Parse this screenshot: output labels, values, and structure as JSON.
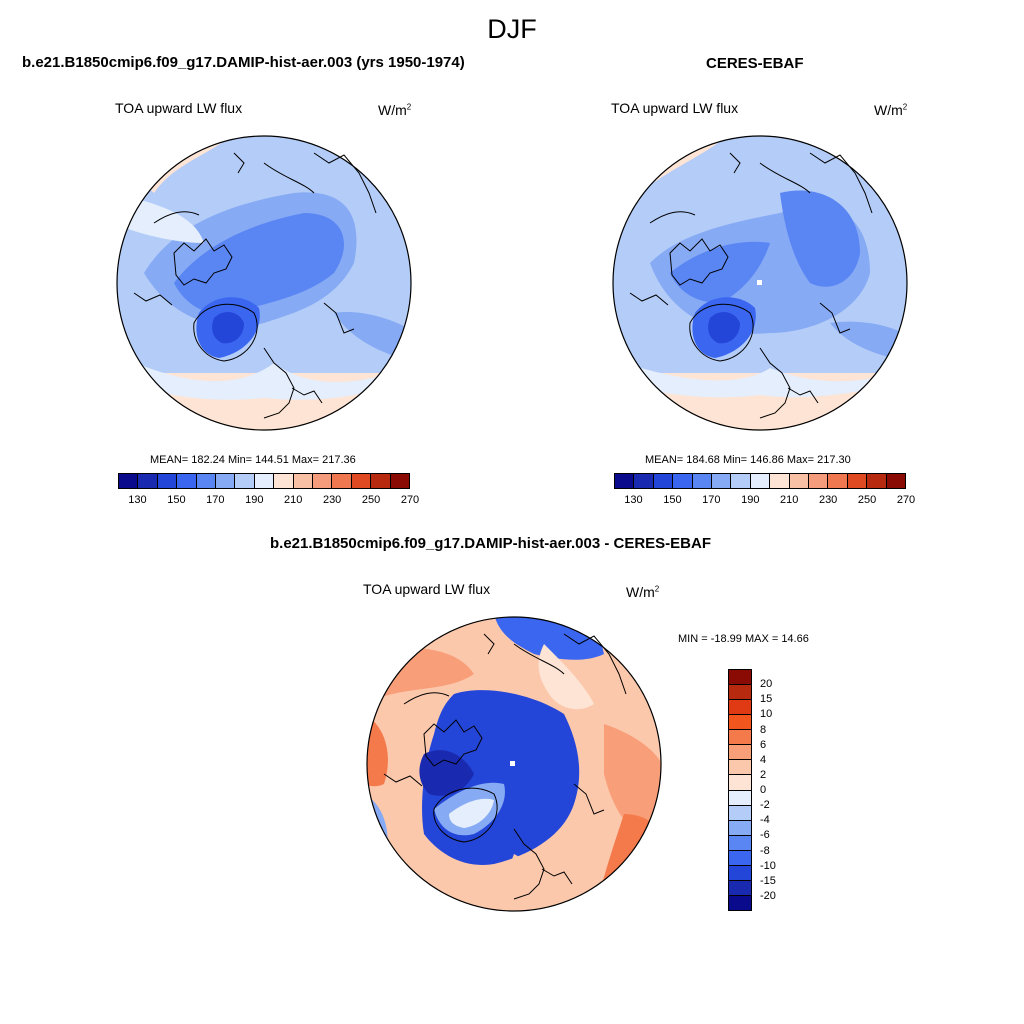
{
  "figure": {
    "title": "DJF"
  },
  "panel_model": {
    "title": "b.e21.B1850cmip6.f09_g17.DAMIP-hist-aer.003 (yrs 1950-1974)",
    "variable": "TOA upward LW flux",
    "units_base": "W/m",
    "units_exp": "2",
    "stats": "MEAN= 182.24  Min= 144.51  Max= 217.36"
  },
  "panel_obs": {
    "title": "CERES-EBAF",
    "variable": "TOA upward LW flux",
    "units_base": "W/m",
    "units_exp": "2",
    "stats": "MEAN= 184.68  Min= 146.86  Max= 217.30"
  },
  "panel_diff": {
    "title": "b.e21.B1850cmip6.f09_g17.DAMIP-hist-aer.003 - CERES-EBAF",
    "variable": "TOA upward LW flux",
    "units_base": "W/m",
    "units_exp": "2",
    "stats": "MIN = -18.99 MAX =  14.66"
  },
  "colorbar_abs": {
    "colors": [
      "#0a0a8c",
      "#1a2ab0",
      "#2446d8",
      "#3a66f0",
      "#5a86f4",
      "#86aaf4",
      "#b4ccf8",
      "#e4eefc",
      "#fde4d4",
      "#f8c0a4",
      "#f49c7c",
      "#f07850",
      "#e04a22",
      "#b82a10",
      "#8a0a04"
    ],
    "tick_labels": [
      "130",
      "150",
      "170",
      "190",
      "210",
      "230",
      "250",
      "270"
    ]
  },
  "colorbar_diff": {
    "colors": [
      "#8a0a04",
      "#b82a10",
      "#e03a14",
      "#f2561e",
      "#f47a4c",
      "#f89e78",
      "#fcc8ac",
      "#fde4d4",
      "#e4eefc",
      "#b4ccf8",
      "#86aaf4",
      "#5a86f4",
      "#3a66f0",
      "#2446d8",
      "#1a2ab0",
      "#0a0a8c"
    ],
    "tick_labels": [
      "20",
      "15",
      "10",
      "8",
      "6",
      "4",
      "2",
      "0",
      "-2",
      "-4",
      "-6",
      "-8",
      "-10",
      "-15",
      "-20"
    ]
  }
}
